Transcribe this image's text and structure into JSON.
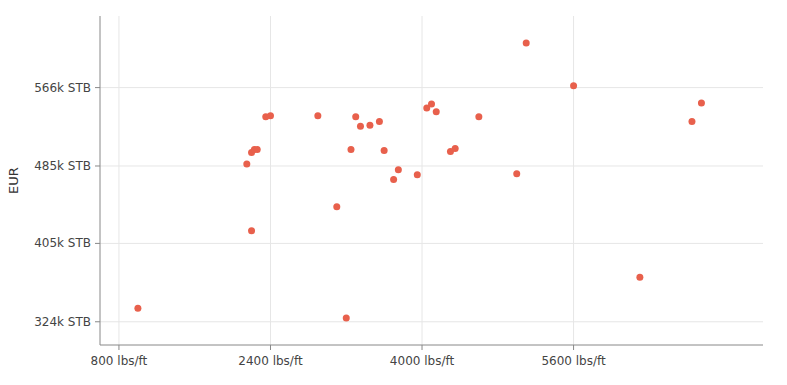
{
  "chart_data": {
    "type": "scatter",
    "ylabel": "EUR",
    "x": [
      1000,
      2150,
      2200,
      2230,
      2260,
      2350,
      2400,
      2200,
      2900,
      3100,
      3200,
      3250,
      3300,
      3350,
      3450,
      3550,
      3600,
      3700,
      3750,
      3950,
      4050,
      4100,
      4150,
      4300,
      4350,
      4600,
      5000,
      5100,
      5600,
      6300,
      6850,
      6950
    ],
    "values": [
      338000,
      487000,
      499000,
      502000,
      502000,
      536000,
      537000,
      418000,
      537000,
      443000,
      328000,
      502000,
      536000,
      526000,
      527000,
      531000,
      501000,
      471000,
      481000,
      476000,
      545000,
      549000,
      541000,
      500000,
      503000,
      536000,
      477000,
      612000,
      568000,
      370000,
      531000,
      550000
    ],
    "color": "#E8604C",
    "xlim": [
      600,
      7600
    ],
    "ylim": [
      300000,
      640000
    ],
    "xticks": [
      {
        "value": 800,
        "label": "800 lbs/ft"
      },
      {
        "value": 2400,
        "label": "2400 lbs/ft"
      },
      {
        "value": 4000,
        "label": "4000 lbs/ft"
      },
      {
        "value": 5600,
        "label": "5600 lbs/ft"
      }
    ],
    "yticks": [
      {
        "value": 324000,
        "label": "324k STB"
      },
      {
        "value": 405000,
        "label": "405k STB"
      },
      {
        "value": 485000,
        "label": "485k STB"
      },
      {
        "value": 566000,
        "label": "566k STB"
      }
    ],
    "grid": true
  }
}
